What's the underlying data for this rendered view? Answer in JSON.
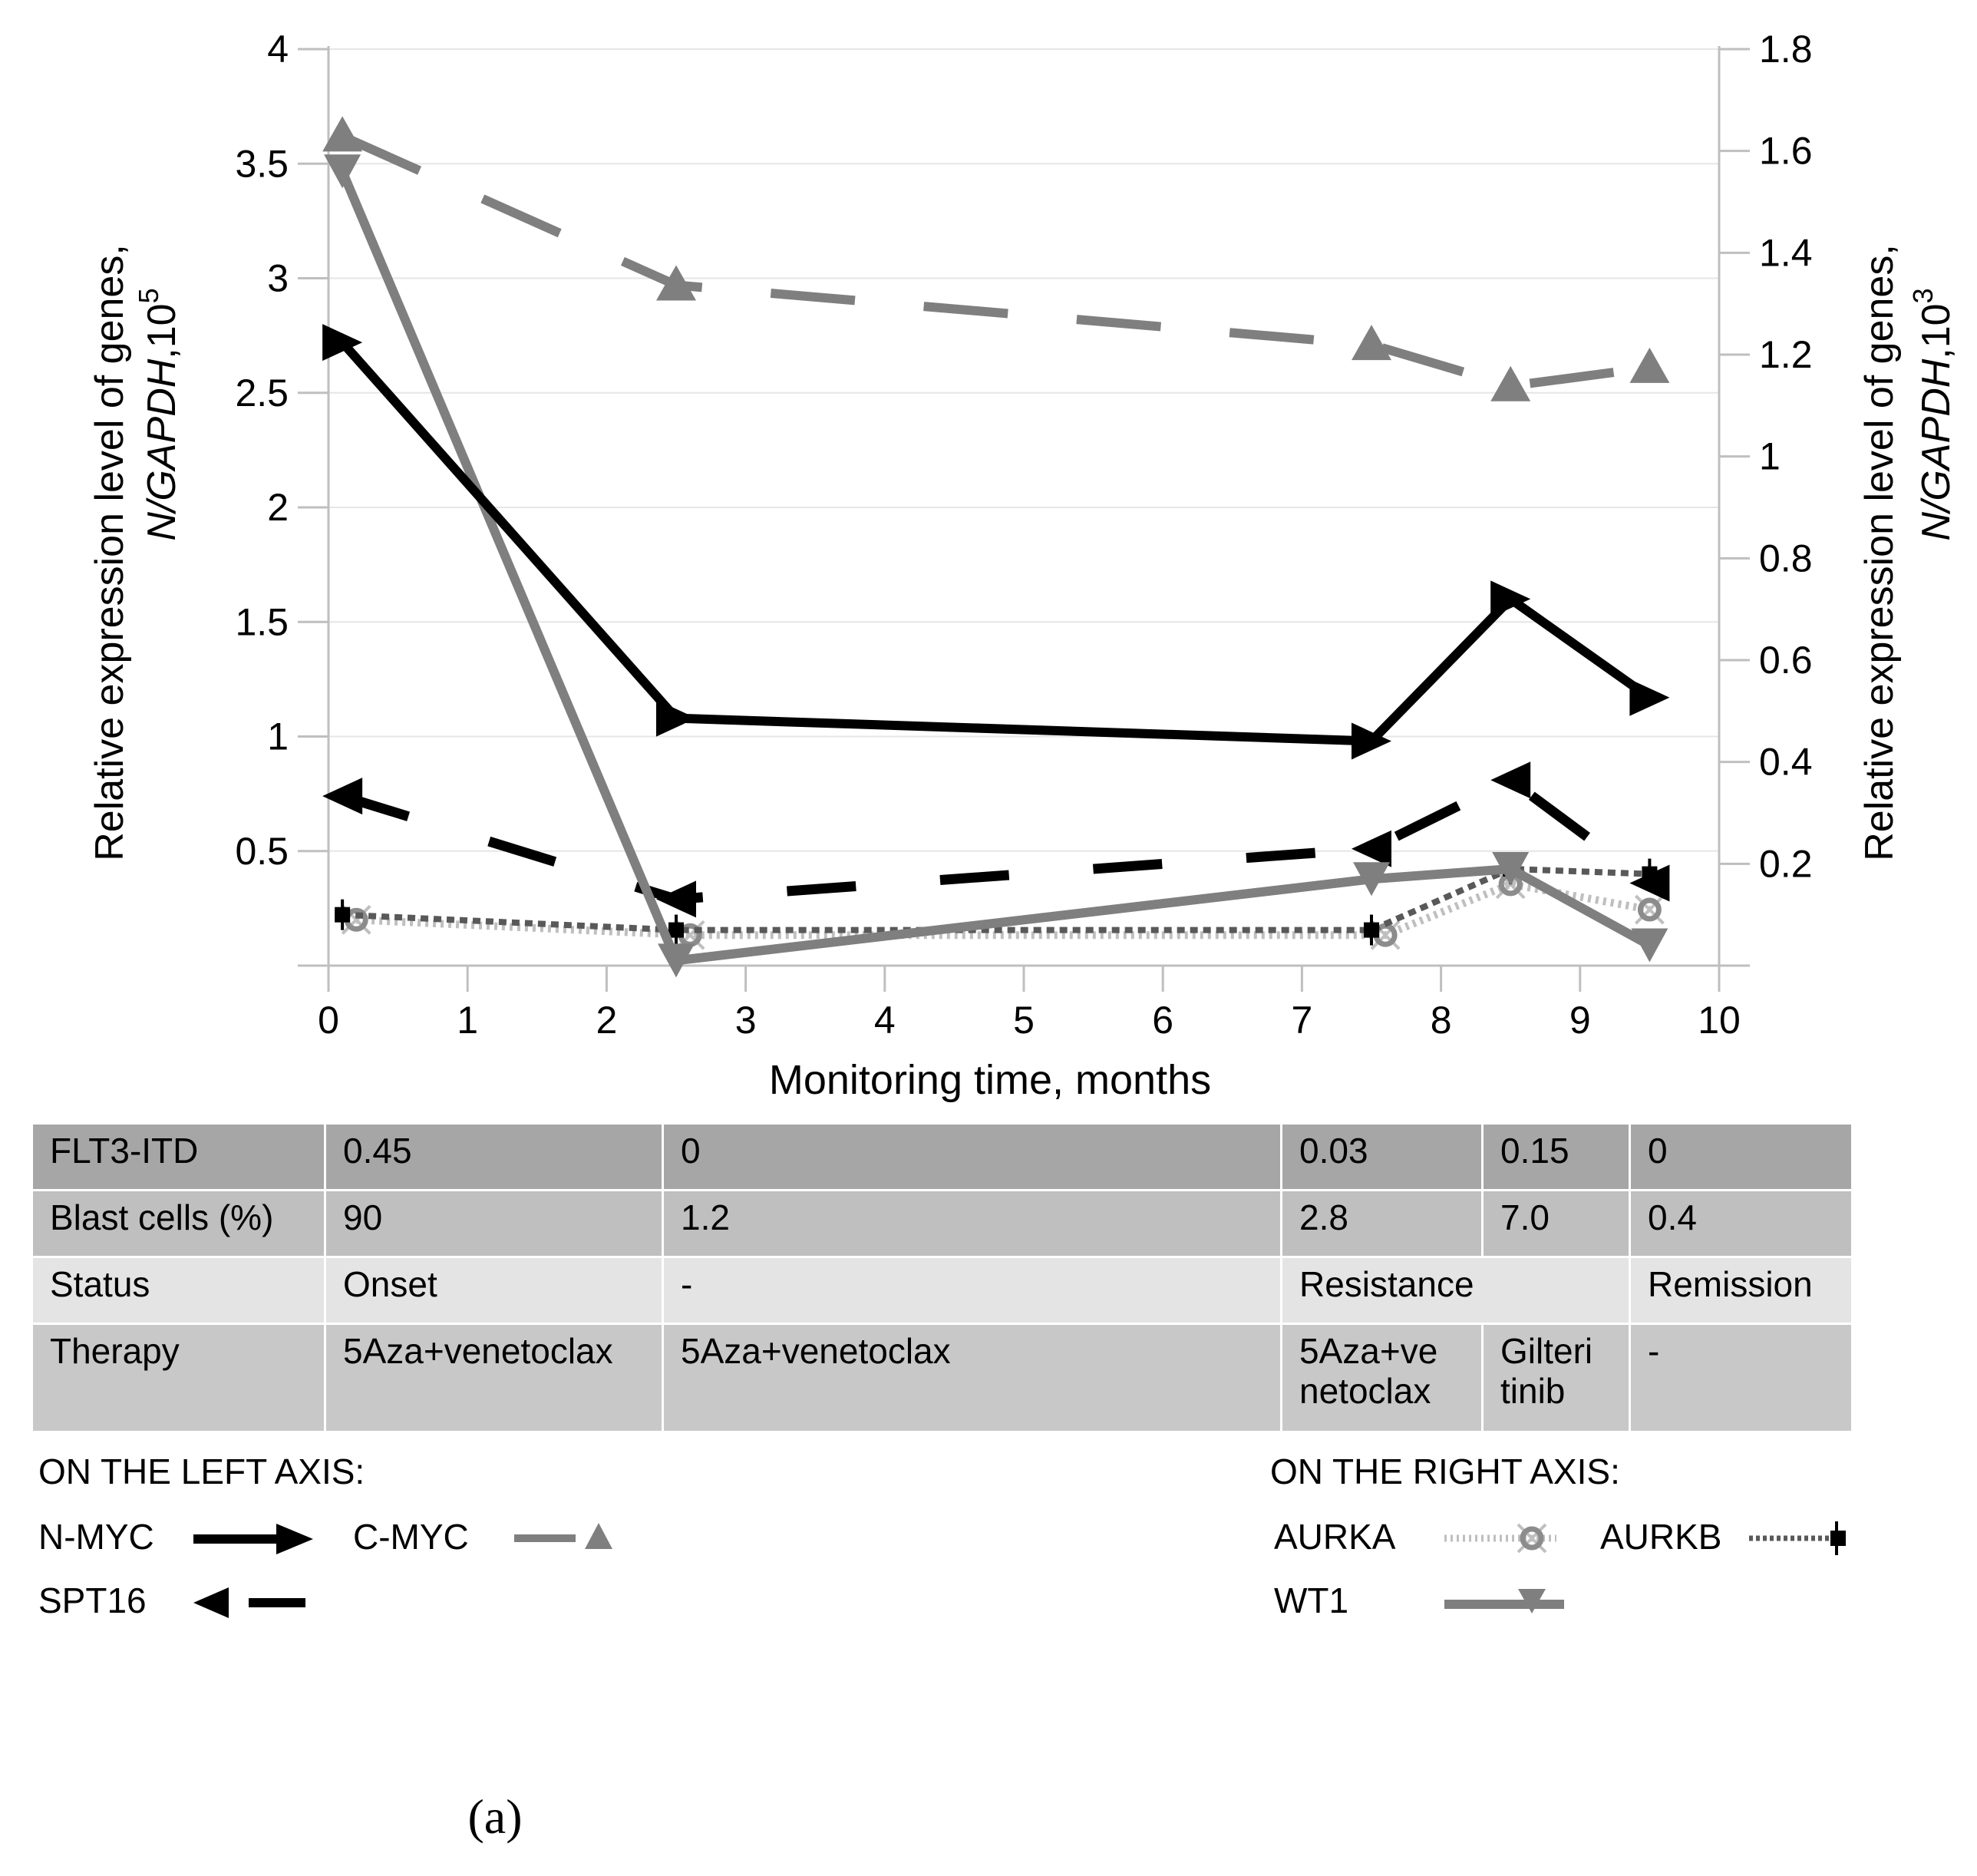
{
  "chart_data": {
    "type": "line",
    "xlabel": "Monitoring time, months",
    "x_ticks": [
      "0",
      "1",
      "2",
      "3",
      "4",
      "5",
      "6",
      "7",
      "8",
      "9",
      "10"
    ],
    "xlim": [
      0,
      10
    ],
    "left_axis": {
      "label_line1": "Relative expression level of genes,",
      "label_line2_pre": "N/GAPDH",
      "label_line2_post": ",10",
      "label_exp": "5",
      "ylim": [
        0,
        4
      ],
      "ticks": [
        "0.5",
        "1",
        "1.5",
        "2",
        "2.5",
        "3",
        "3.5",
        "4"
      ]
    },
    "right_axis": {
      "label_line1": "Relative expression level of genes,",
      "label_line2_pre": "N/GAPDH",
      "label_line2_post": ",10",
      "label_exp": "3",
      "ylim": [
        0,
        1.8
      ],
      "ticks": [
        "0.2",
        "0.4",
        "0.6",
        "0.8",
        "1",
        "1.2",
        "1.4",
        "1.6",
        "1.8"
      ]
    },
    "series": [
      {
        "name": "C-MYC",
        "axis": "left",
        "color": "#7f7f7f",
        "style": "dash",
        "marker": "triangle-up",
        "x": [
          0.1,
          2.5,
          7.5,
          8.5,
          9.5
        ],
        "y": [
          3.62,
          2.97,
          2.71,
          2.53,
          2.61
        ]
      },
      {
        "name": "N-MYC",
        "axis": "left",
        "color": "#000000",
        "style": "solid",
        "marker": "arrow-right",
        "x": [
          0.1,
          2.5,
          7.5,
          8.5,
          9.5
        ],
        "y": [
          2.72,
          1.08,
          0.98,
          1.6,
          1.17
        ]
      },
      {
        "name": "SPT16",
        "axis": "left",
        "color": "#000000",
        "style": "longdash",
        "marker": "arrow-left",
        "x": [
          0.1,
          2.5,
          7.5,
          8.5,
          9.5
        ],
        "y": [
          0.74,
          0.29,
          0.51,
          0.81,
          0.36
        ]
      },
      {
        "name": "WT1",
        "axis": "right",
        "color": "#7f7f7f",
        "style": "solid",
        "marker": "triangle-down",
        "x": [
          0.1,
          2.5,
          7.5,
          8.5,
          9.5
        ],
        "y": [
          1.56,
          0.01,
          0.17,
          0.19,
          0.04
        ]
      },
      {
        "name": "AURKA",
        "axis": "right",
        "color": "#bfbfbf",
        "style": "dot",
        "marker": "circle",
        "x": [
          0.2,
          2.6,
          7.6,
          8.5,
          9.5
        ],
        "y": [
          0.09,
          0.06,
          0.06,
          0.16,
          0.11
        ]
      },
      {
        "name": "AURKB",
        "axis": "right",
        "color": "#595959",
        "style": "shortdash",
        "marker": "square",
        "x": [
          0.1,
          2.5,
          7.5,
          8.5,
          9.5
        ],
        "y": [
          0.1,
          0.07,
          0.07,
          0.19,
          0.18
        ]
      }
    ]
  },
  "table": {
    "rows": [
      {
        "label": "FLT3-ITD",
        "cells": [
          "0.45",
          "0",
          "0.03",
          "0.15",
          "0"
        ]
      },
      {
        "label": "Blast cells (%)",
        "cells": [
          "90",
          "1.2",
          "2.8",
          "7.0",
          "0.4"
        ]
      },
      {
        "label": "Status",
        "onset": "Onset",
        "dash": "-",
        "resistance": "Resistance",
        "remission": "Remission"
      },
      {
        "label": "Therapy",
        "cells": [
          "5Aza+venetoclax",
          "5Aza+venetoclax",
          "5Aza+ve netoclax",
          "Gilteri tinib",
          "-"
        ]
      }
    ]
  },
  "legend": {
    "left_heading": "ON THE LEFT AXIS:",
    "right_heading": "ON THE RIGHT AXIS:",
    "items": {
      "n_myc": "N-MYC",
      "c_myc": "C-MYC",
      "spt16": "SPT16",
      "aurka": "AURKA",
      "aurkb": "AURKB",
      "wt1": "WT1"
    }
  },
  "caption": "(a)"
}
